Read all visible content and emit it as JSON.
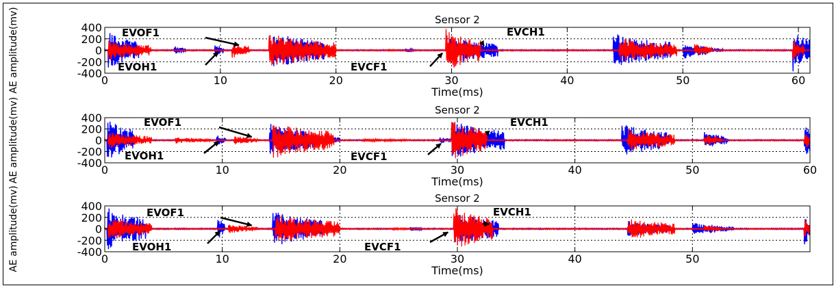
{
  "chart_data": [
    {
      "type": "line",
      "title": "Sensor 2",
      "xlabel": "Time(ms)",
      "ylabel": "AE amplitude(mv)",
      "xlim": [
        0,
        61
      ],
      "ylim": [
        -400,
        400
      ],
      "xticks": [
        0,
        10,
        20,
        30,
        40,
        50,
        60
      ],
      "xtick_labels": [
        "0",
        "10",
        "20",
        "30",
        "40",
        "50",
        "60"
      ],
      "yticks": [
        400,
        200,
        0,
        -200,
        -400
      ],
      "ytick_labels": [
        "400",
        "200",
        "0",
        "-200",
        "-400"
      ],
      "grid": true,
      "series": [
        {
          "color": "#0000ff",
          "bursts": [
            [
              0.3,
              3.0,
              320
            ],
            [
              6.0,
              7.0,
              80
            ],
            [
              9.5,
              10.3,
              110
            ],
            [
              14.5,
              19.0,
              330
            ],
            [
              26.0,
              26.8,
              40
            ],
            [
              29.8,
              31.0,
              250
            ],
            [
              31.0,
              34.0,
              220
            ],
            [
              44.0,
              49.0,
              300
            ],
            [
              50.0,
              52.0,
              160
            ],
            [
              52.0,
              53.5,
              60
            ],
            [
              59.5,
              61.0,
              380
            ]
          ]
        },
        {
          "color": "#ff0000",
          "bursts": [
            [
              0.3,
              4.0,
              180
            ],
            [
              11.0,
              12.5,
              150
            ],
            [
              14.2,
              20.0,
              300
            ],
            [
              24.5,
              25.5,
              20
            ],
            [
              29.5,
              32.5,
              380
            ],
            [
              44.5,
              49.5,
              220
            ],
            [
              51.0,
              52.5,
              120
            ],
            [
              59.5,
              60.5,
              200
            ]
          ]
        }
      ],
      "annotations": [
        {
          "text": "EVOF1",
          "x": 11.6,
          "y": 90
        },
        {
          "text": "EVOH1",
          "x": 9.8,
          "y": -30
        },
        {
          "text": "EVCF1",
          "x": 29.2,
          "y": -50
        },
        {
          "text": "EVCH1",
          "x": 32.8,
          "y": 80
        }
      ]
    },
    {
      "type": "line",
      "title": "Sensor 2",
      "xlabel": "Time(ms)",
      "ylabel": "AE amplitude(mv)",
      "xlim": [
        0,
        60
      ],
      "ylim": [
        -400,
        400
      ],
      "xticks": [
        0,
        10,
        20,
        30,
        40,
        50,
        60
      ],
      "xtick_labels": [
        "0",
        "10",
        "20",
        "30",
        "40",
        "50",
        "60"
      ],
      "yticks": [
        400,
        200,
        0,
        -200,
        -400
      ],
      "ytick_labels": [
        "400",
        "200",
        "0",
        "-200",
        "-400"
      ],
      "grid": true,
      "series": [
        {
          "color": "#0000ff",
          "bursts": [
            [
              0.2,
              2.5,
              380
            ],
            [
              9.5,
              10.3,
              100
            ],
            [
              14.0,
              18.0,
              300
            ],
            [
              18.0,
              20.0,
              100
            ],
            [
              28.5,
              29.5,
              60
            ],
            [
              29.5,
              34.0,
              350
            ],
            [
              44.0,
              48.0,
              300
            ],
            [
              51.0,
              53.0,
              150
            ],
            [
              59.5,
              60.0,
              380
            ]
          ]
        },
        {
          "color": "#ff0000",
          "bursts": [
            [
              0.3,
              4.0,
              150
            ],
            [
              6.0,
              9.0,
              60
            ],
            [
              11.0,
              13.0,
              80
            ],
            [
              14.3,
              19.5,
              330
            ],
            [
              22.0,
              26.0,
              30
            ],
            [
              29.5,
              32.5,
              380
            ],
            [
              44.5,
              48.5,
              220
            ],
            [
              51.0,
              52.5,
              110
            ],
            [
              59.5,
              60.0,
              200
            ]
          ]
        }
      ],
      "annotations": [
        {
          "text": "EVOF1",
          "x": 12.5,
          "y": 60
        },
        {
          "text": "EVOH1",
          "x": 9.7,
          "y": -20
        },
        {
          "text": "EVCF1",
          "x": 28.6,
          "y": -60
        },
        {
          "text": "EVCH1",
          "x": 32.6,
          "y": 80
        }
      ]
    },
    {
      "type": "line",
      "title": "Sensor 2",
      "xlabel": "Time(ms)",
      "ylabel": "AE amplitude(mv)",
      "xlim": [
        0,
        60
      ],
      "ylim": [
        -400,
        400
      ],
      "xticks": [
        0,
        10,
        20,
        30,
        40,
        50
      ],
      "xtick_labels": [
        "0",
        "10",
        "20",
        "30",
        "40",
        "50"
      ],
      "yticks": [
        400,
        200,
        0,
        -200,
        -400
      ],
      "ytick_labels": [
        "400",
        "200",
        "0",
        "-200",
        "-400"
      ],
      "grid": true,
      "series": [
        {
          "color": "#0000ff",
          "bursts": [
            [
              0.2,
              3.5,
              380
            ],
            [
              9.6,
              10.2,
              220
            ],
            [
              14.3,
              18.5,
              320
            ],
            [
              26.0,
              27.0,
              40
            ],
            [
              29.8,
              33.5,
              300
            ],
            [
              44.5,
              48.0,
              150
            ],
            [
              50.0,
              51.5,
              120
            ],
            [
              51.5,
              53.5,
              80
            ],
            [
              59.5,
              60.0,
              380
            ]
          ]
        },
        {
          "color": "#ff0000",
          "bursts": [
            [
              0.3,
              4.0,
              200
            ],
            [
              10.5,
              13.0,
              80
            ],
            [
              14.5,
              20.0,
              270
            ],
            [
              24.5,
              27.0,
              20
            ],
            [
              29.7,
              33.0,
              390
            ],
            [
              44.5,
              48.5,
              200
            ],
            [
              51.0,
              52.5,
              70
            ],
            [
              59.5,
              60.0,
              200
            ]
          ]
        }
      ],
      "annotations": [
        {
          "text": "EVOF1",
          "x": 12.5,
          "y": 60
        },
        {
          "text": "EVOH1",
          "x": 9.8,
          "y": -40
        },
        {
          "text": "EVCF1",
          "x": 29.2,
          "y": -60
        },
        {
          "text": "EVCH1",
          "x": 32.7,
          "y": 80
        }
      ]
    }
  ]
}
